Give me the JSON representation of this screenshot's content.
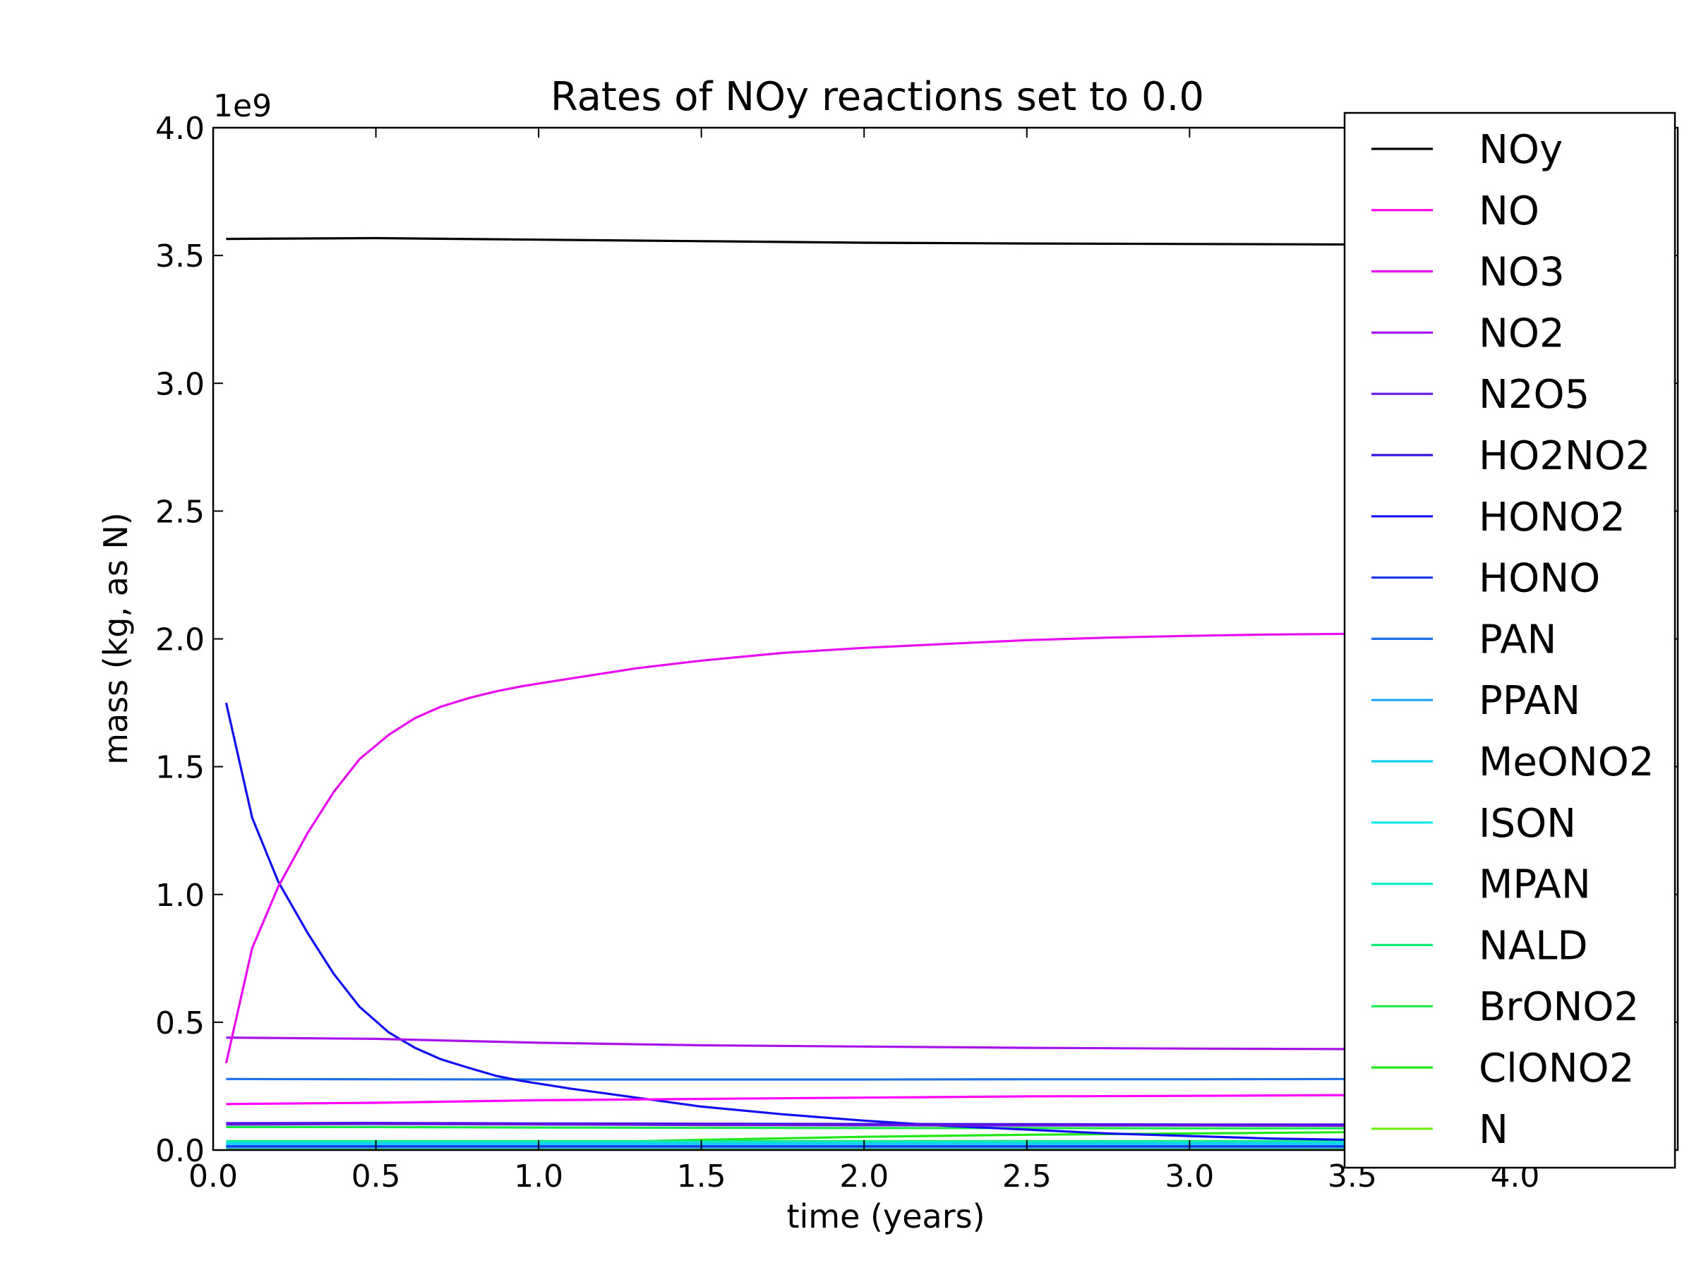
{
  "chart_data": {
    "type": "line",
    "title": "Rates of NOy reactions set to 0.0",
    "xlabel": "time (years)",
    "ylabel": "mass (kg, as N)",
    "y_multiplier_label": "1e9",
    "xlim": [
      0.0,
      4.5
    ],
    "ylim": [
      0.0,
      4.0
    ],
    "x_ticks": [
      "0.0",
      "0.5",
      "1.0",
      "1.5",
      "2.0",
      "2.5",
      "3.0",
      "3.5",
      "4.0"
    ],
    "y_ticks": [
      "0.0",
      "0.5",
      "1.0",
      "1.5",
      "2.0",
      "2.5",
      "3.0",
      "3.5",
      "4.0"
    ],
    "grid": false,
    "legend_position": "right",
    "series": [
      {
        "name": "NOy",
        "color": "#000000",
        "x": [
          0.04,
          0.5,
          1.0,
          1.5,
          2.0,
          2.5,
          3.0,
          3.5
        ],
        "y": [
          3.565,
          3.568,
          3.562,
          3.556,
          3.55,
          3.547,
          3.545,
          3.543
        ]
      },
      {
        "name": "NO",
        "color": "#ff00ff",
        "x": [
          0.04,
          0.5,
          1.0,
          1.5,
          2.0,
          2.5,
          3.0,
          3.5
        ],
        "y": [
          0.18,
          0.185,
          0.195,
          0.2,
          0.205,
          0.21,
          0.212,
          0.215
        ]
      },
      {
        "name": "NO3",
        "color": "#e80cf0",
        "x": [
          0.04,
          0.12,
          0.2,
          0.29,
          0.37,
          0.45,
          0.54,
          0.62,
          0.7,
          0.79,
          0.87,
          0.95,
          1.1,
          1.3,
          1.5,
          1.75,
          2.0,
          2.25,
          2.5,
          2.75,
          3.0,
          3.25,
          3.5
        ],
        "y": [
          0.34,
          0.79,
          1.03,
          1.24,
          1.4,
          1.53,
          1.625,
          1.69,
          1.735,
          1.77,
          1.795,
          1.815,
          1.845,
          1.885,
          1.915,
          1.945,
          1.965,
          1.98,
          1.995,
          2.005,
          2.012,
          2.017,
          2.02
        ]
      },
      {
        "name": "NO2",
        "color": "#a812ea",
        "x": [
          0.04,
          0.5,
          1.0,
          1.5,
          2.0,
          2.5,
          3.0,
          3.5
        ],
        "y": [
          0.44,
          0.435,
          0.42,
          0.41,
          0.405,
          0.4,
          0.397,
          0.395
        ]
      },
      {
        "name": "N2O5",
        "color": "#6a16e0",
        "x": [
          0.04,
          0.5,
          1.0,
          1.5,
          2.0,
          2.5,
          3.0,
          3.5
        ],
        "y": [
          0.1,
          0.102,
          0.1,
          0.098,
          0.097,
          0.096,
          0.096,
          0.095
        ]
      },
      {
        "name": "HO2NO2",
        "color": "#3a10e8",
        "x": [
          0.04,
          0.5,
          1.0,
          1.5,
          2.0,
          2.5,
          3.0,
          3.5
        ],
        "y": [
          0.105,
          0.106,
          0.104,
          0.103,
          0.102,
          0.101,
          0.1,
          0.1
        ]
      },
      {
        "name": "HONO2",
        "color": "#1010f0",
        "x": [
          0.04,
          0.12,
          0.2,
          0.29,
          0.37,
          0.45,
          0.54,
          0.62,
          0.7,
          0.79,
          0.87,
          0.95,
          1.1,
          1.3,
          1.5,
          1.75,
          2.0,
          2.25,
          2.5,
          2.75,
          3.0,
          3.25,
          3.5
        ],
        "y": [
          1.75,
          1.3,
          1.05,
          0.85,
          0.69,
          0.56,
          0.46,
          0.4,
          0.355,
          0.32,
          0.29,
          0.27,
          0.24,
          0.205,
          0.17,
          0.14,
          0.115,
          0.095,
          0.08,
          0.065,
          0.055,
          0.045,
          0.04
        ]
      },
      {
        "name": "HONO",
        "color": "#1f3ae8",
        "x": [
          0.04,
          0.5,
          1.0,
          1.5,
          2.0,
          2.5,
          3.0,
          3.5
        ],
        "y": [
          0.015,
          0.015,
          0.015,
          0.015,
          0.015,
          0.015,
          0.015,
          0.015
        ]
      },
      {
        "name": "PAN",
        "color": "#1f6ee8",
        "x": [
          0.04,
          0.5,
          1.0,
          1.5,
          2.0,
          2.5,
          3.0,
          3.5
        ],
        "y": [
          0.278,
          0.277,
          0.276,
          0.276,
          0.276,
          0.277,
          0.277,
          0.278
        ]
      },
      {
        "name": "PPAN",
        "color": "#1f9ff0",
        "x": [
          0.04,
          0.5,
          1.0,
          1.5,
          2.0,
          2.5,
          3.0,
          3.5
        ],
        "y": [
          0.01,
          0.01,
          0.01,
          0.01,
          0.01,
          0.01,
          0.01,
          0.01
        ]
      },
      {
        "name": "MeONO2",
        "color": "#12d0f5",
        "x": [
          0.04,
          0.5,
          1.0,
          1.5,
          2.0,
          2.5,
          3.0,
          3.5
        ],
        "y": [
          0.025,
          0.025,
          0.025,
          0.025,
          0.025,
          0.025,
          0.025,
          0.025
        ]
      },
      {
        "name": "ISON",
        "color": "#12eaf0",
        "x": [
          0.04,
          0.5,
          1.0,
          1.5,
          2.0,
          2.5,
          3.0,
          3.5
        ],
        "y": [
          0.02,
          0.02,
          0.02,
          0.02,
          0.02,
          0.02,
          0.02,
          0.02
        ]
      },
      {
        "name": "MPAN",
        "color": "#12eac0",
        "x": [
          0.04,
          0.5,
          1.0,
          1.5,
          2.0,
          2.5,
          3.0,
          3.5
        ],
        "y": [
          0.03,
          0.03,
          0.03,
          0.03,
          0.03,
          0.03,
          0.03,
          0.03
        ]
      },
      {
        "name": "NALD",
        "color": "#12ea7a",
        "x": [
          0.04,
          0.5,
          1.0,
          1.5,
          2.0,
          2.5,
          3.0,
          3.5
        ],
        "y": [
          0.035,
          0.035,
          0.035,
          0.035,
          0.035,
          0.035,
          0.035,
          0.035
        ]
      },
      {
        "name": "BrONO2",
        "color": "#1ae84a",
        "x": [
          0.04,
          0.5,
          1.0,
          1.5,
          2.0,
          2.5,
          3.0,
          3.5
        ],
        "y": [
          0.09,
          0.09,
          0.088,
          0.087,
          0.086,
          0.086,
          0.085,
          0.085
        ]
      },
      {
        "name": "ClONO2",
        "color": "#22e81a",
        "x": [
          0.04,
          0.5,
          1.0,
          1.5,
          2.0,
          2.5,
          3.0,
          3.5
        ],
        "y": [
          0.01,
          0.012,
          0.025,
          0.04,
          0.052,
          0.06,
          0.065,
          0.07
        ]
      },
      {
        "name": "N",
        "color": "#6aee12",
        "x": [
          0.04,
          0.5,
          1.0,
          1.5,
          2.0,
          2.5,
          3.0,
          3.5
        ],
        "y": [
          0.005,
          0.005,
          0.005,
          0.005,
          0.005,
          0.005,
          0.005,
          0.005
        ]
      }
    ]
  }
}
